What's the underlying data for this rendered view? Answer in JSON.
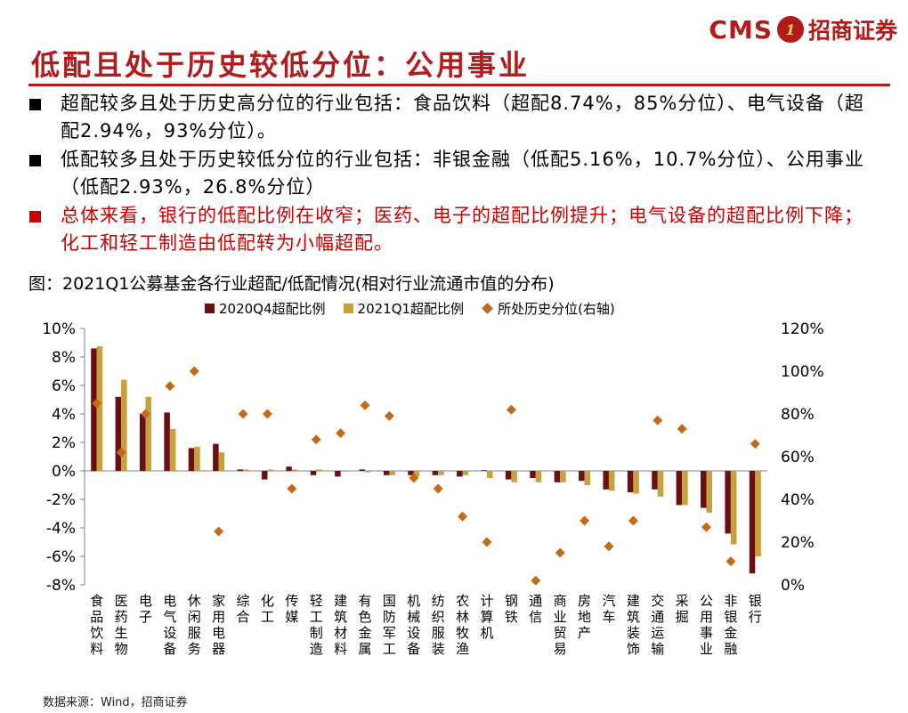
{
  "logo": {
    "brand": "CMS",
    "badge_text": "1",
    "name_cn": "招商证券"
  },
  "page_title": "低配且处于历史较低分位：公用事业",
  "bullets": [
    {
      "text": "超配较多且处于历史高分位的行业包括：食品饮料（超配8.74%，85%分位）、电气设备（超配2.94%，93%分位）。",
      "color": "#000000"
    },
    {
      "text": "低配较多且处于历史较低分位的行业包括：非银金融（低配5.16%，10.7%分位）、公用事业（低配2.93%，26.8%分位）",
      "color": "#000000"
    },
    {
      "text": "总体来看，银行的低配比例在收窄；医药、电子的超配比例提升；电气设备的超配比例下降；化工和轻工制造由低配转为小幅超配。",
      "color": "#cc0000"
    }
  ],
  "chart_title": "图：2021Q1公募基金各行业超配/低配情况(相对行业流通市值的分布)",
  "source": "数据来源：Wind，招商证券",
  "colors": {
    "accent": "#b31b1b",
    "series1": "#6b0f12",
    "series2": "#c8a03c",
    "series3": "#c46a16"
  },
  "chart_data": {
    "type": "bar",
    "categories": [
      "食品饮料",
      "医药生物",
      "电子",
      "电气设备",
      "休闲服务",
      "家用电器",
      "综合",
      "化工",
      "传媒",
      "轻工制造",
      "建筑材料",
      "有色金属",
      "国防军工",
      "机械设备",
      "纺织服装",
      "农林牧渔",
      "计算机",
      "钢铁",
      "通信",
      "商业贸易",
      "房地产",
      "汽车",
      "建筑装饰",
      "交通运输",
      "采掘",
      "公用事业",
      "非银金融",
      "银行"
    ],
    "series": [
      {
        "name": "2020Q4超配比例",
        "type": "bar",
        "axis": "left",
        "values": [
          8.6,
          5.2,
          4.0,
          4.1,
          1.6,
          1.9,
          0.1,
          -0.6,
          0.3,
          -0.3,
          -0.4,
          0.1,
          -0.3,
          -0.3,
          -0.3,
          -0.4,
          0.05,
          -0.6,
          -0.5,
          -0.8,
          -0.7,
          -1.3,
          -1.5,
          -1.3,
          -2.4,
          -2.6,
          -4.4,
          -7.2
        ]
      },
      {
        "name": "2021Q1超配比例",
        "type": "bar",
        "axis": "left",
        "values": [
          8.74,
          6.4,
          5.2,
          2.94,
          1.7,
          1.3,
          0.1,
          0.1,
          0.1,
          0.1,
          0.0,
          -0.1,
          -0.3,
          -0.4,
          -0.3,
          -0.3,
          -0.5,
          -0.8,
          -0.8,
          -0.8,
          -1.0,
          -1.4,
          -1.6,
          -1.8,
          -2.4,
          -2.93,
          -5.16,
          -6.0
        ]
      },
      {
        "name": "所处历史分位(右轴)",
        "type": "scatter",
        "axis": "right",
        "values": [
          85,
          62,
          80,
          93,
          100,
          25,
          80,
          80,
          45,
          68,
          71,
          84,
          79,
          50,
          45,
          32,
          20,
          82,
          2,
          15,
          30,
          18,
          30,
          77,
          73,
          27,
          11,
          66
        ]
      }
    ],
    "ylim_left": [
      -8,
      10
    ],
    "ylim_right": [
      0,
      120
    ],
    "yticks_left": [
      "-8%",
      "-6%",
      "-4%",
      "-2%",
      "0%",
      "2%",
      "4%",
      "6%",
      "8%",
      "10%"
    ],
    "yticks_right": [
      "0%",
      "20%",
      "40%",
      "60%",
      "80%",
      "100%",
      "120%"
    ],
    "legend_position": "top",
    "grid": false
  }
}
